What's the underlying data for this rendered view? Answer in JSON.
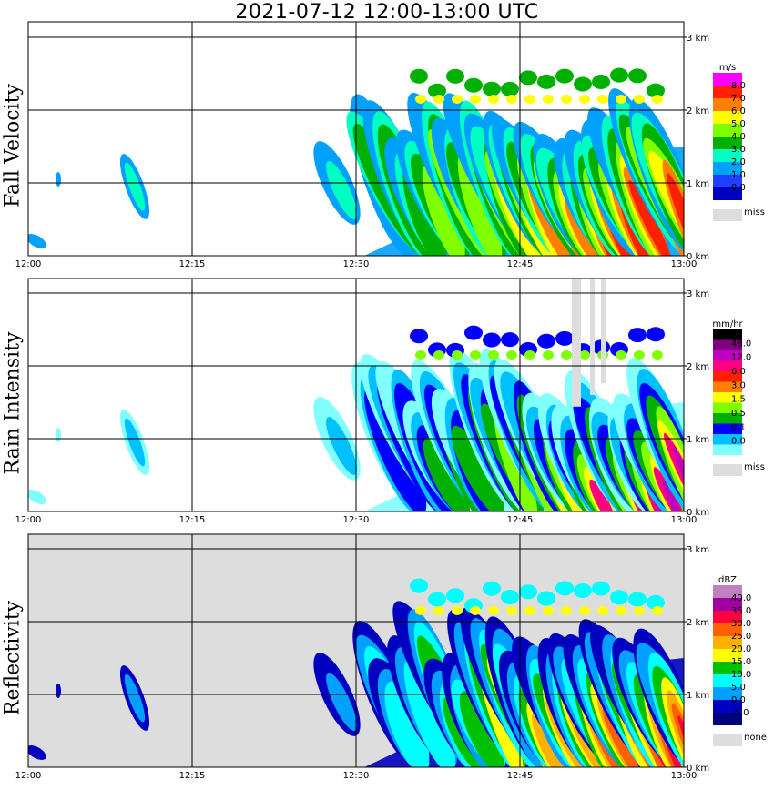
{
  "title": "2021-07-12   12:00-13:00 UTC",
  "x_tick_labels": [
    "12:00",
    "12:15",
    "12:30",
    "12:45",
    "13:00"
  ],
  "y_tick_labels": [
    "0 km",
    "1 km",
    "2 km",
    "3 km"
  ],
  "chart_data": [
    {
      "type": "heatmap",
      "panel_label": "Fall Velocity",
      "colorbar_unit": "m/s",
      "colorbar_levels": [
        "8.0",
        "7.0",
        "6.0",
        "5.0",
        "4.0",
        "3.0",
        "2.0",
        "1.0",
        "0.0"
      ],
      "colorbar_colors": [
        "#ff00ff",
        "#ff2000",
        "#ff8000",
        "#ffff00",
        "#80ff00",
        "#00b000",
        "#00ffc0",
        "#00a0ff",
        "#2040ff",
        "#0000c0"
      ],
      "missing_label": "miss",
      "missing_color": "#dddddd",
      "x_range": [
        "12:00",
        "13:00"
      ],
      "y_range_km": [
        0,
        3.2
      ],
      "description_values": "fall velocity up to ~8 m/s in precipitation cells after ~12:35 UTC"
    },
    {
      "type": "heatmap",
      "panel_label": "Rain Intensity",
      "colorbar_unit": "mm/hr",
      "colorbar_levels": [
        "48.0",
        "12.0",
        "6.0",
        "3.0",
        "1.5",
        "0.5",
        "0.1",
        "0.0"
      ],
      "colorbar_colors": [
        "#000000",
        "#800080",
        "#c000c0",
        "#ff0080",
        "#ff2000",
        "#ff8000",
        "#ffff00",
        "#80ff00",
        "#00b000",
        "#0000ff",
        "#00c0ff",
        "#80ffff"
      ],
      "missing_label": "miss",
      "missing_color": "#dddddd",
      "x_range": [
        "12:00",
        "13:00"
      ],
      "y_range_km": [
        0,
        3.2
      ]
    },
    {
      "type": "heatmap",
      "panel_label": "Reflectivity",
      "colorbar_unit": "dBZ",
      "colorbar_levels": [
        "40.0",
        "35.0",
        "30.0",
        "25.0",
        "20.0",
        "15.0",
        "10.0",
        "5.0",
        "0.0",
        "-5.0"
      ],
      "colorbar_colors": [
        "#c080c0",
        "#a000a0",
        "#ff0040",
        "#ff6000",
        "#ffb000",
        "#ffff00",
        "#00c000",
        "#00ffff",
        "#00a0ff",
        "#0000c0",
        "#000080"
      ],
      "missing_label": "none",
      "missing_color": "#dddddd",
      "x_range": [
        "12:00",
        "13:00"
      ],
      "y_range_km": [
        0,
        3.2
      ]
    }
  ]
}
